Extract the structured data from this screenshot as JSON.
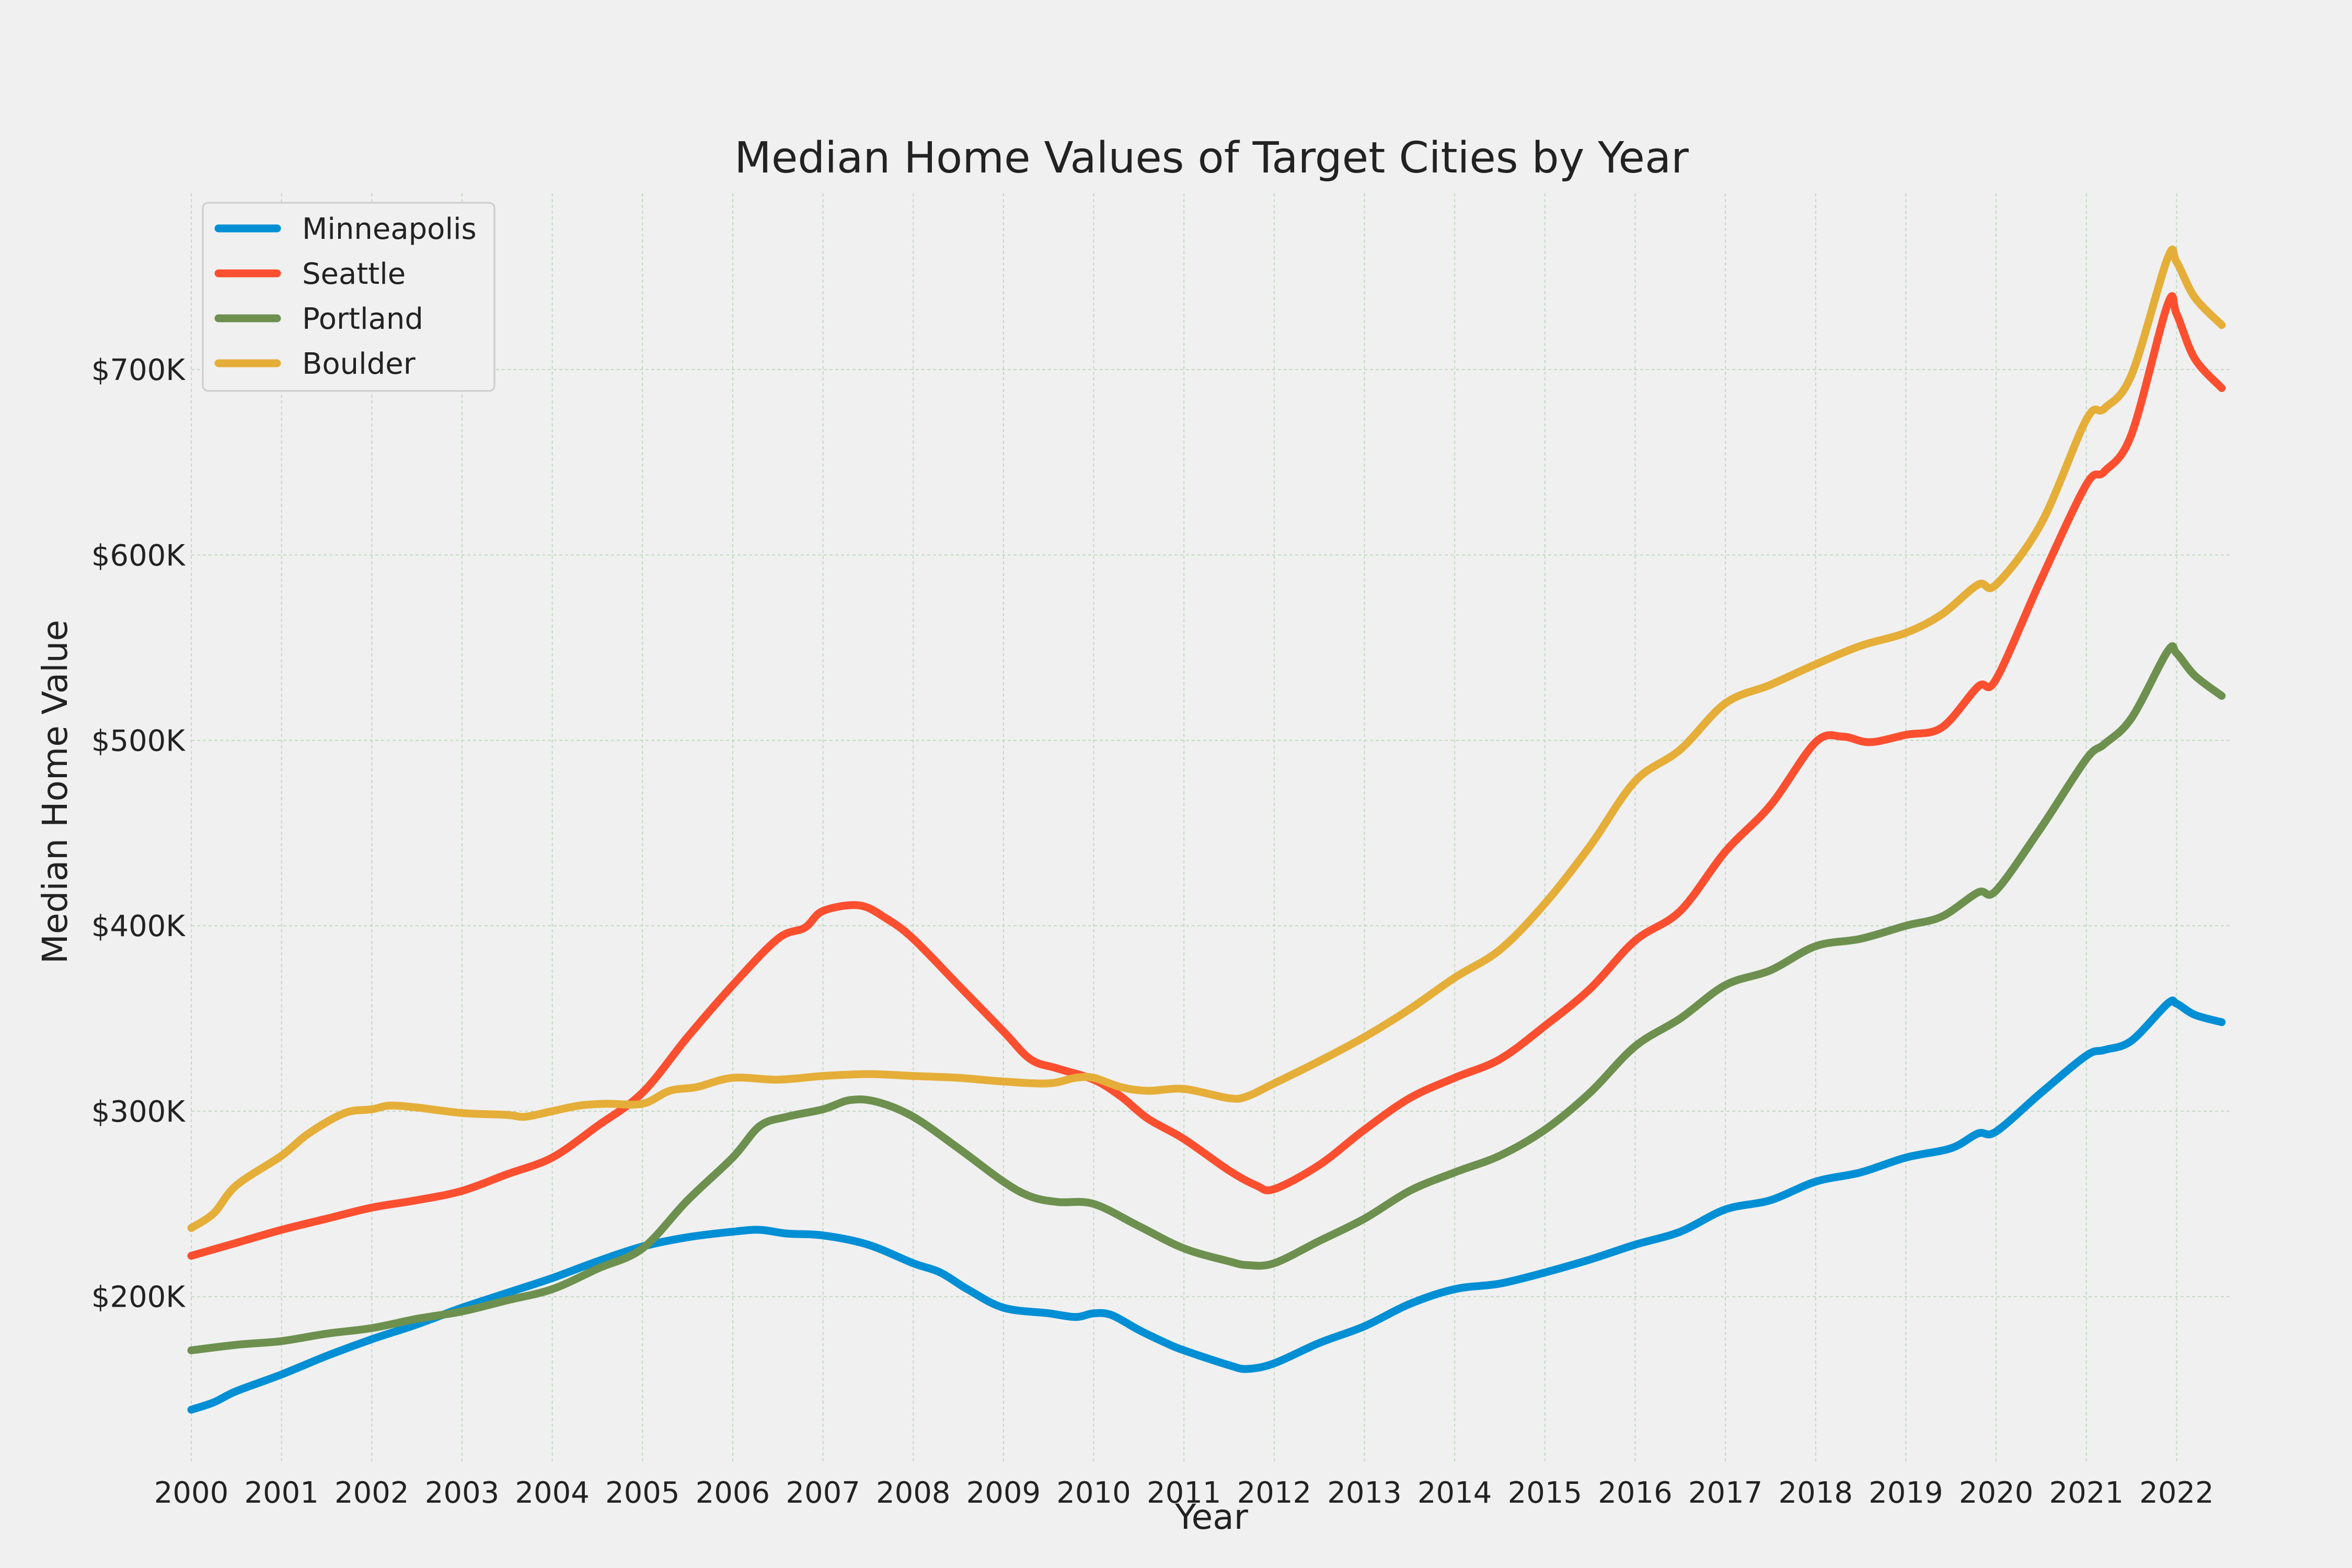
{
  "chart_data": {
    "type": "line",
    "title": "Median Home Values of Target Cities by Year",
    "xlabel": "Year",
    "ylabel": "Median Home Value",
    "xlim": [
      2000,
      2022.6
    ],
    "ylim": [
      110000,
      795000
    ],
    "x_ticks": [
      "2000",
      "2001",
      "2002",
      "2003",
      "2004",
      "2005",
      "2006",
      "2007",
      "2008",
      "2009",
      "2010",
      "2011",
      "2012",
      "2013",
      "2014",
      "2015",
      "2016",
      "2017",
      "2018",
      "2019",
      "2020",
      "2021",
      "2022"
    ],
    "y_ticks": [
      {
        "value": 200000,
        "label": "$200K"
      },
      {
        "value": 300000,
        "label": "$300K"
      },
      {
        "value": 400000,
        "label": "$400K"
      },
      {
        "value": 500000,
        "label": "$500K"
      },
      {
        "value": 600000,
        "label": "$600K"
      },
      {
        "value": 700000,
        "label": "$700K"
      }
    ],
    "grid": true,
    "legend_position": "top-left",
    "series": [
      {
        "name": "Minneapolis",
        "color": "#008fd5",
        "points": [
          [
            2000,
            139000
          ],
          [
            2000.25,
            143000
          ],
          [
            2000.5,
            149000
          ],
          [
            2001,
            158000
          ],
          [
            2001.5,
            168000
          ],
          [
            2002,
            177000
          ],
          [
            2002.5,
            185000
          ],
          [
            2003,
            194000
          ],
          [
            2003.5,
            202000
          ],
          [
            2004,
            210000
          ],
          [
            2004.5,
            219000
          ],
          [
            2005,
            227000
          ],
          [
            2005.5,
            232000
          ],
          [
            2006,
            235000
          ],
          [
            2006.3,
            236000
          ],
          [
            2006.6,
            234000
          ],
          [
            2007,
            233000
          ],
          [
            2007.5,
            228000
          ],
          [
            2008,
            218000
          ],
          [
            2008.3,
            213000
          ],
          [
            2008.6,
            204000
          ],
          [
            2009,
            194000
          ],
          [
            2009.5,
            191000
          ],
          [
            2009.8,
            189000
          ],
          [
            2010,
            191000
          ],
          [
            2010.2,
            190000
          ],
          [
            2010.5,
            182000
          ],
          [
            2010.8,
            175000
          ],
          [
            2011,
            171000
          ],
          [
            2011.5,
            163000
          ],
          [
            2011.7,
            161000
          ],
          [
            2012,
            164000
          ],
          [
            2012.5,
            175000
          ],
          [
            2013,
            184000
          ],
          [
            2013.5,
            196000
          ],
          [
            2014,
            204000
          ],
          [
            2014.5,
            207000
          ],
          [
            2015,
            213000
          ],
          [
            2015.5,
            220000
          ],
          [
            2016,
            228000
          ],
          [
            2016.5,
            235000
          ],
          [
            2017,
            247000
          ],
          [
            2017.5,
            252000
          ],
          [
            2018,
            262000
          ],
          [
            2018.5,
            267000
          ],
          [
            2019,
            275000
          ],
          [
            2019.5,
            280000
          ],
          [
            2019.8,
            288000
          ],
          [
            2020,
            289000
          ],
          [
            2020.5,
            310000
          ],
          [
            2021,
            330000
          ],
          [
            2021.2,
            333000
          ],
          [
            2021.5,
            338000
          ],
          [
            2021.9,
            358000
          ],
          [
            2022,
            358000
          ],
          [
            2022.2,
            352000
          ],
          [
            2022.5,
            348000
          ]
        ]
      },
      {
        "name": "Seattle",
        "color": "#fc4f30",
        "points": [
          [
            2000,
            222000
          ],
          [
            2000.5,
            229000
          ],
          [
            2001,
            236000
          ],
          [
            2001.5,
            242000
          ],
          [
            2002,
            248000
          ],
          [
            2002.5,
            252000
          ],
          [
            2003,
            257000
          ],
          [
            2003.5,
            266000
          ],
          [
            2004,
            275000
          ],
          [
            2004.5,
            292000
          ],
          [
            2005,
            310000
          ],
          [
            2005.5,
            340000
          ],
          [
            2006,
            368000
          ],
          [
            2006.5,
            393000
          ],
          [
            2006.8,
            399000
          ],
          [
            2007,
            408000
          ],
          [
            2007.4,
            411000
          ],
          [
            2007.7,
            404000
          ],
          [
            2008,
            393000
          ],
          [
            2008.5,
            368000
          ],
          [
            2009,
            343000
          ],
          [
            2009.3,
            328000
          ],
          [
            2009.6,
            323000
          ],
          [
            2010,
            317000
          ],
          [
            2010.3,
            308000
          ],
          [
            2010.6,
            296000
          ],
          [
            2011,
            285000
          ],
          [
            2011.5,
            268000
          ],
          [
            2011.8,
            260000
          ],
          [
            2012,
            258000
          ],
          [
            2012.5,
            271000
          ],
          [
            2013,
            290000
          ],
          [
            2013.5,
            307000
          ],
          [
            2014,
            318000
          ],
          [
            2014.5,
            328000
          ],
          [
            2015,
            346000
          ],
          [
            2015.5,
            366000
          ],
          [
            2016,
            392000
          ],
          [
            2016.5,
            408000
          ],
          [
            2017,
            440000
          ],
          [
            2017.5,
            465000
          ],
          [
            2018,
            499000
          ],
          [
            2018.3,
            502000
          ],
          [
            2018.6,
            499000
          ],
          [
            2019,
            503000
          ],
          [
            2019.4,
            507000
          ],
          [
            2019.8,
            529000
          ],
          [
            2020,
            533000
          ],
          [
            2020.5,
            587000
          ],
          [
            2021,
            638000
          ],
          [
            2021.2,
            645000
          ],
          [
            2021.5,
            665000
          ],
          [
            2021.9,
            735000
          ],
          [
            2022,
            730000
          ],
          [
            2022.2,
            706000
          ],
          [
            2022.5,
            690000
          ]
        ]
      },
      {
        "name": "Portland",
        "color": "#6d904f",
        "points": [
          [
            2000,
            171000
          ],
          [
            2000.5,
            174000
          ],
          [
            2001,
            176000
          ],
          [
            2001.5,
            180000
          ],
          [
            2002,
            183000
          ],
          [
            2002.5,
            188000
          ],
          [
            2003,
            192000
          ],
          [
            2003.5,
            198000
          ],
          [
            2004,
            204000
          ],
          [
            2004.5,
            215000
          ],
          [
            2005,
            226000
          ],
          [
            2005.5,
            252000
          ],
          [
            2006,
            275000
          ],
          [
            2006.3,
            292000
          ],
          [
            2006.6,
            297000
          ],
          [
            2007,
            301000
          ],
          [
            2007.3,
            306000
          ],
          [
            2007.6,
            305000
          ],
          [
            2008,
            297000
          ],
          [
            2008.5,
            280000
          ],
          [
            2009,
            262000
          ],
          [
            2009.3,
            254000
          ],
          [
            2009.6,
            251000
          ],
          [
            2010,
            250000
          ],
          [
            2010.5,
            238000
          ],
          [
            2011,
            226000
          ],
          [
            2011.5,
            219000
          ],
          [
            2011.7,
            217000
          ],
          [
            2012,
            218000
          ],
          [
            2012.5,
            230000
          ],
          [
            2013,
            242000
          ],
          [
            2013.5,
            257000
          ],
          [
            2014,
            267000
          ],
          [
            2014.5,
            276000
          ],
          [
            2015,
            290000
          ],
          [
            2015.5,
            310000
          ],
          [
            2016,
            335000
          ],
          [
            2016.5,
            350000
          ],
          [
            2017,
            368000
          ],
          [
            2017.5,
            376000
          ],
          [
            2018,
            389000
          ],
          [
            2018.5,
            393000
          ],
          [
            2019,
            400000
          ],
          [
            2019.4,
            405000
          ],
          [
            2019.8,
            418000
          ],
          [
            2020,
            419000
          ],
          [
            2020.5,
            453000
          ],
          [
            2021,
            490000
          ],
          [
            2021.2,
            498000
          ],
          [
            2021.5,
            512000
          ],
          [
            2021.9,
            548000
          ],
          [
            2022,
            547000
          ],
          [
            2022.2,
            535000
          ],
          [
            2022.5,
            524000
          ]
        ]
      },
      {
        "name": "Boulder",
        "color": "#e5ae38",
        "points": [
          [
            2000,
            237000
          ],
          [
            2000.25,
            245000
          ],
          [
            2000.5,
            260000
          ],
          [
            2001,
            276000
          ],
          [
            2001.3,
            288000
          ],
          [
            2001.7,
            299000
          ],
          [
            2002,
            301000
          ],
          [
            2002.2,
            303000
          ],
          [
            2002.5,
            302000
          ],
          [
            2003,
            299000
          ],
          [
            2003.5,
            298000
          ],
          [
            2003.7,
            297000
          ],
          [
            2004,
            300000
          ],
          [
            2004.3,
            303000
          ],
          [
            2004.6,
            304000
          ],
          [
            2005,
            304000
          ],
          [
            2005.3,
            311000
          ],
          [
            2005.6,
            313000
          ],
          [
            2006,
            318000
          ],
          [
            2006.5,
            317000
          ],
          [
            2007,
            319000
          ],
          [
            2007.5,
            320000
          ],
          [
            2008,
            319000
          ],
          [
            2008.5,
            318000
          ],
          [
            2009,
            316000
          ],
          [
            2009.5,
            315000
          ],
          [
            2009.8,
            318000
          ],
          [
            2010,
            318000
          ],
          [
            2010.3,
            313000
          ],
          [
            2010.6,
            311000
          ],
          [
            2011,
            312000
          ],
          [
            2011.5,
            307000
          ],
          [
            2011.7,
            308000
          ],
          [
            2012,
            315000
          ],
          [
            2012.5,
            327000
          ],
          [
            2013,
            340000
          ],
          [
            2013.5,
            355000
          ],
          [
            2014,
            372000
          ],
          [
            2014.5,
            387000
          ],
          [
            2015,
            412000
          ],
          [
            2015.5,
            443000
          ],
          [
            2016,
            478000
          ],
          [
            2016.5,
            495000
          ],
          [
            2017,
            520000
          ],
          [
            2017.5,
            530000
          ],
          [
            2018,
            541000
          ],
          [
            2018.5,
            551000
          ],
          [
            2019,
            558000
          ],
          [
            2019.4,
            568000
          ],
          [
            2019.8,
            584000
          ],
          [
            2020,
            584000
          ],
          [
            2020.5,
            617000
          ],
          [
            2021,
            673000
          ],
          [
            2021.2,
            679000
          ],
          [
            2021.5,
            697000
          ],
          [
            2021.9,
            760000
          ],
          [
            2022,
            758000
          ],
          [
            2022.2,
            739000
          ],
          [
            2022.5,
            724000
          ]
        ]
      }
    ]
  }
}
